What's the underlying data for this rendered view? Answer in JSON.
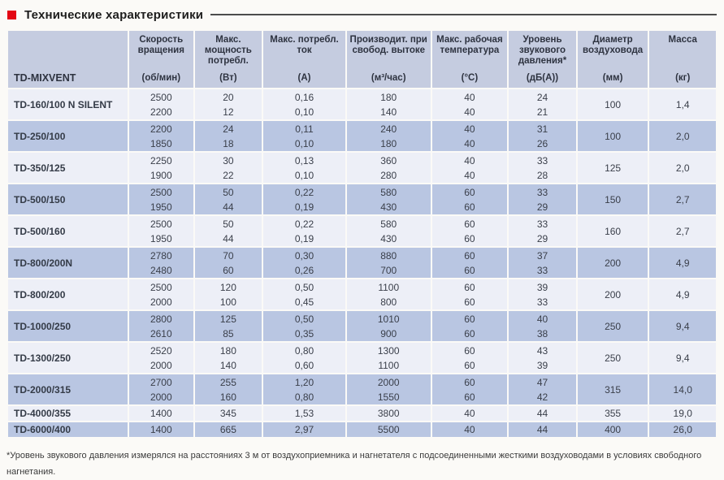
{
  "page": {
    "title": "Технические характеристики",
    "footnote": "*Уровень звукового давления измерялся на расстояниях 3 м от воздухоприемника и нагнетателя с подсоединенными жесткими воздуховодами в условиях свободного нагнетания."
  },
  "colors": {
    "accent_red": "#e30613",
    "header_bg": "#c5cce0",
    "row_blue": "#b9c6e2",
    "row_light": "#edeff7",
    "text": "#3a3f4a"
  },
  "table": {
    "model_header": "TD-MIXVENT",
    "columns": [
      {
        "title": "Скорость вращения",
        "unit": "(об/мин)"
      },
      {
        "title": "Макс. мощность потребл.",
        "unit": "(Вт)"
      },
      {
        "title": "Макс. потребл. ток",
        "unit": "(А)"
      },
      {
        "title": "Производит. при свобод. вытоке",
        "unit": "(м³/час)"
      },
      {
        "title": "Макс. рабочая температура",
        "unit": "(°С)"
      },
      {
        "title": "Уровень звукового давления*",
        "unit": "(дБ(А))"
      },
      {
        "title": "Диаметр воздуховода",
        "unit": "(мм)"
      },
      {
        "title": "Масса",
        "unit": "(кг)"
      }
    ],
    "rows": [
      {
        "model": "TD-160/100 N SILENT",
        "shade": "light",
        "values": [
          [
            "2500",
            "2200"
          ],
          [
            "20",
            "12"
          ],
          [
            "0,16",
            "0,10"
          ],
          [
            "180",
            "140"
          ],
          [
            "40",
            "40"
          ],
          [
            "24",
            "21"
          ],
          [
            "100"
          ],
          [
            "1,4"
          ]
        ]
      },
      {
        "model": "TD-250/100",
        "shade": "blue",
        "values": [
          [
            "2200",
            "1850"
          ],
          [
            "24",
            "18"
          ],
          [
            "0,11",
            "0,10"
          ],
          [
            "240",
            "180"
          ],
          [
            "40",
            "40"
          ],
          [
            "31",
            "26"
          ],
          [
            "100"
          ],
          [
            "2,0"
          ]
        ]
      },
      {
        "model": "TD-350/125",
        "shade": "light",
        "values": [
          [
            "2250",
            "1900"
          ],
          [
            "30",
            "22"
          ],
          [
            "0,13",
            "0,10"
          ],
          [
            "360",
            "280"
          ],
          [
            "40",
            "40"
          ],
          [
            "33",
            "28"
          ],
          [
            "125"
          ],
          [
            "2,0"
          ]
        ]
      },
      {
        "model": "TD-500/150",
        "shade": "blue",
        "values": [
          [
            "2500",
            "1950"
          ],
          [
            "50",
            "44"
          ],
          [
            "0,22",
            "0,19"
          ],
          [
            "580",
            "430"
          ],
          [
            "60",
            "60"
          ],
          [
            "33",
            "29"
          ],
          [
            "150"
          ],
          [
            "2,7"
          ]
        ]
      },
      {
        "model": "TD-500/160",
        "shade": "light",
        "values": [
          [
            "2500",
            "1950"
          ],
          [
            "50",
            "44"
          ],
          [
            "0,22",
            "0,19"
          ],
          [
            "580",
            "430"
          ],
          [
            "60",
            "60"
          ],
          [
            "33",
            "29"
          ],
          [
            "160"
          ],
          [
            "2,7"
          ]
        ]
      },
      {
        "model": "TD-800/200N",
        "shade": "blue",
        "values": [
          [
            "2780",
            "2480"
          ],
          [
            "70",
            "60"
          ],
          [
            "0,30",
            "0,26"
          ],
          [
            "880",
            "700"
          ],
          [
            "60",
            "60"
          ],
          [
            "37",
            "33"
          ],
          [
            "200"
          ],
          [
            "4,9"
          ]
        ]
      },
      {
        "model": "TD-800/200",
        "shade": "light",
        "values": [
          [
            "2500",
            "2000"
          ],
          [
            "120",
            "100"
          ],
          [
            "0,50",
            "0,45"
          ],
          [
            "1100",
            "800"
          ],
          [
            "60",
            "60"
          ],
          [
            "39",
            "33"
          ],
          [
            "200"
          ],
          [
            "4,9"
          ]
        ]
      },
      {
        "model": "TD-1000/250",
        "shade": "blue",
        "values": [
          [
            "2800",
            "2610"
          ],
          [
            "125",
            "85"
          ],
          [
            "0,50",
            "0,35"
          ],
          [
            "1010",
            "900"
          ],
          [
            "60",
            "60"
          ],
          [
            "40",
            "38"
          ],
          [
            "250"
          ],
          [
            "9,4"
          ]
        ]
      },
      {
        "model": "TD-1300/250",
        "shade": "light",
        "values": [
          [
            "2520",
            "2000"
          ],
          [
            "180",
            "140"
          ],
          [
            "0,80",
            "0,60"
          ],
          [
            "1300",
            "1100"
          ],
          [
            "60",
            "60"
          ],
          [
            "43",
            "39"
          ],
          [
            "250"
          ],
          [
            "9,4"
          ]
        ]
      },
      {
        "model": "TD-2000/315",
        "shade": "blue",
        "values": [
          [
            "2700",
            "2000"
          ],
          [
            "255",
            "160"
          ],
          [
            "1,20",
            "0,80"
          ],
          [
            "2000",
            "1550"
          ],
          [
            "60",
            "60"
          ],
          [
            "47",
            "42"
          ],
          [
            "315"
          ],
          [
            "14,0"
          ]
        ]
      },
      {
        "model": "TD-4000/355",
        "shade": "light",
        "values": [
          [
            "1400"
          ],
          [
            "345"
          ],
          [
            "1,53"
          ],
          [
            "3800"
          ],
          [
            "40"
          ],
          [
            "44"
          ],
          [
            "355"
          ],
          [
            "19,0"
          ]
        ]
      },
      {
        "model": "TD-6000/400",
        "shade": "blue",
        "values": [
          [
            "1400"
          ],
          [
            "665"
          ],
          [
            "2,97"
          ],
          [
            "5500"
          ],
          [
            "40"
          ],
          [
            "44"
          ],
          [
            "400"
          ],
          [
            "26,0"
          ]
        ]
      }
    ]
  }
}
